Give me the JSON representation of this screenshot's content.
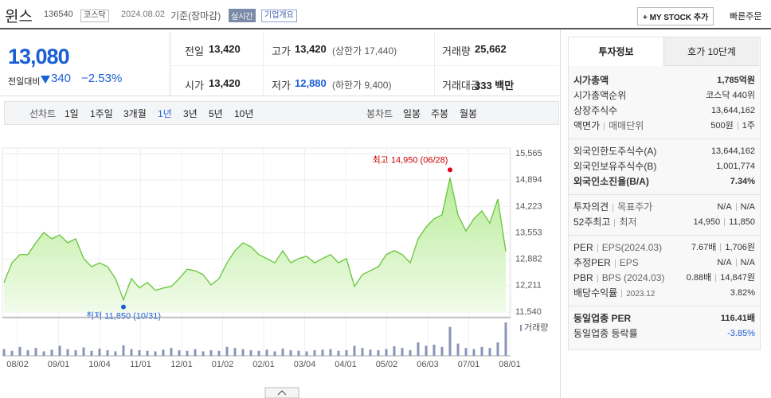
{
  "header": {
    "name": "윈스",
    "code": "136540",
    "market": "코스닥",
    "date": "2024.08.02",
    "basis": "기준(장마감)",
    "realtime": "실시간",
    "overview": "기업개요",
    "mystock": "+ MY STOCK 추가",
    "quick_order": "빠른주문"
  },
  "price": {
    "current": "13,080",
    "change_label": "전일대비",
    "change": "340",
    "rate": "−2.53%"
  },
  "quote": {
    "rows": [
      [
        {
          "label": "전일",
          "value": "13,420"
        },
        {
          "label": "고가",
          "value": "13,420",
          "note": "(상한가 17,440)"
        },
        {
          "label": "거래량",
          "value": "25,662"
        }
      ],
      [
        {
          "label": "시가",
          "value": "13,420"
        },
        {
          "label": "저가",
          "value": "12,880",
          "note": "(하한가 9,400)"
        },
        {
          "label": "거래대금",
          "value": "333 백만"
        }
      ]
    ]
  },
  "periods": {
    "line_label": "선차트",
    "line": [
      "1일",
      "1주일",
      "3개월",
      "1년",
      "3년",
      "5년",
      "10년"
    ],
    "candle_label": "봉차트",
    "candle": [
      "일봉",
      "주봉",
      "월봉"
    ]
  },
  "chart_data": {
    "type": "line",
    "color": "#66c43a",
    "x_labels": [
      "08/02",
      "09/01",
      "10/04",
      "11/01",
      "12/01",
      "01/02",
      "02/01",
      "03/04",
      "04/01",
      "05/02",
      "06/03",
      "07/01",
      "08/01"
    ],
    "values": [
      12290,
      12790,
      13000,
      13000,
      13300,
      13560,
      13400,
      13500,
      13300,
      13400,
      12900,
      12690,
      12790,
      12690,
      12390,
      11850,
      12390,
      12150,
      12290,
      12090,
      12150,
      12190,
      12390,
      12630,
      12590,
      12490,
      12230,
      12390,
      12790,
      13100,
      13300,
      13200,
      13000,
      12900,
      12790,
      13100,
      12790,
      12900,
      12960,
      12790,
      12900,
      13000,
      12790,
      12900,
      12190,
      12490,
      12590,
      12690,
      13000,
      13100,
      13000,
      12790,
      13400,
      13700,
      13910,
      14010,
      14950,
      14010,
      13600,
      13910,
      14110,
      13800,
      14410,
      13080
    ],
    "ylim": [
      11540,
      15565
    ],
    "yticks": [
      {
        "value": 15565,
        "label": "15,565"
      },
      {
        "value": 14894,
        "label": "14,894"
      },
      {
        "value": 14223,
        "label": "14,223"
      },
      {
        "value": 13553,
        "label": "13,553"
      },
      {
        "value": 12882,
        "label": "12,882"
      },
      {
        "value": 12211,
        "label": "12,211"
      },
      {
        "value": 11540,
        "label": "11,540"
      }
    ],
    "grid": true,
    "max_label": "최고 14,950 (06/28)",
    "min_label": "최저 11,850 (10/31)",
    "volume_label": "거래량",
    "volume": [
      60000,
      45000,
      80000,
      50000,
      70000,
      40000,
      55000,
      90000,
      60000,
      50000,
      75000,
      45000,
      65000,
      50000,
      40000,
      95000,
      60000,
      50000,
      45000,
      40000,
      55000,
      70000,
      50000,
      45000,
      60000,
      40000,
      50000,
      45000,
      80000,
      70000,
      60000,
      50000,
      45000,
      55000,
      40000,
      65000,
      50000,
      45000,
      40000,
      50000,
      55000,
      60000,
      45000,
      50000,
      90000,
      70000,
      55000,
      50000,
      60000,
      85000,
      70000,
      50000,
      120000,
      90000,
      100000,
      80000,
      260000,
      110000,
      70000,
      60000,
      80000,
      70000,
      120000,
      300000
    ]
  },
  "panel": {
    "tabs": [
      "투자정보",
      "호가 10단계"
    ],
    "groups": [
      [
        {
          "label": [
            "시가총액"
          ],
          "value": [
            "1,785억원"
          ],
          "bold": true
        },
        {
          "label": [
            "시가총액순위"
          ],
          "value": [
            "코스닥 440위"
          ]
        },
        {
          "label": [
            "상장주식수"
          ],
          "value": [
            "13,644,162"
          ]
        },
        {
          "label": [
            "액면가",
            "매매단위"
          ],
          "value": [
            "500원",
            "1주"
          ]
        }
      ],
      [
        {
          "label": [
            "외국인한도주식수(A)"
          ],
          "value": [
            "13,644,162"
          ]
        },
        {
          "label": [
            "외국인보유주식수(B)"
          ],
          "value": [
            "1,001,774"
          ]
        },
        {
          "label": [
            "외국인소진율(B/A)"
          ],
          "value": [
            "7.34%"
          ],
          "bold": true
        }
      ],
      [
        {
          "label": [
            "투자의견",
            "목표주가"
          ],
          "value": [
            "N/A",
            "N/A"
          ]
        },
        {
          "label": [
            "52주최고",
            "최저"
          ],
          "value": [
            "14,950",
            "11,850"
          ]
        }
      ],
      [
        {
          "label": [
            "PER",
            "EPS(2024.03)"
          ],
          "value": [
            "7.67배",
            "1,706원"
          ]
        },
        {
          "label": [
            "추정PER",
            "EPS"
          ],
          "value": [
            "N/A",
            "N/A"
          ]
        },
        {
          "label": [
            "PBR",
            "BPS (2024.03)"
          ],
          "value": [
            "0.88배",
            "14,847원"
          ]
        },
        {
          "label": [
            "배당수익률",
            "2023.12"
          ],
          "value": [
            "3.82%"
          ]
        }
      ],
      [
        {
          "label": [
            "동일업종 PER"
          ],
          "value": [
            "116.41배"
          ],
          "bold": true
        },
        {
          "label": [
            "동일업종 등락률"
          ],
          "value": [
            "-3.85%"
          ],
          "color": "#1a5fd4"
        }
      ]
    ]
  }
}
